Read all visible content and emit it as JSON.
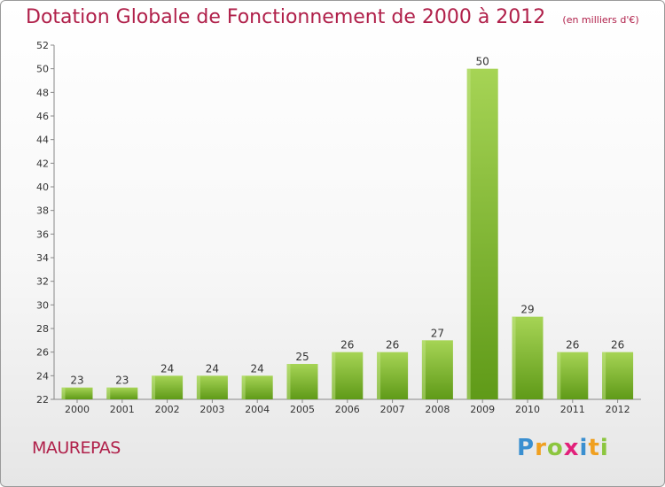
{
  "chart_data": {
    "type": "bar",
    "title": "Dotation Globale de Fonctionnement de 2000 à 2012",
    "subtitle": "(en milliers d'€)",
    "categories": [
      "2000",
      "2001",
      "2002",
      "2003",
      "2004",
      "2005",
      "2006",
      "2007",
      "2008",
      "2009",
      "2010",
      "2011",
      "2012"
    ],
    "values": [
      23,
      23,
      24,
      24,
      24,
      25,
      26,
      26,
      27,
      50,
      29,
      26,
      26
    ],
    "ylim": [
      22,
      52
    ],
    "yticks": [
      22,
      24,
      26,
      28,
      30,
      32,
      34,
      36,
      38,
      40,
      42,
      44,
      46,
      48,
      50,
      52
    ],
    "grid": false,
    "colors": {
      "bar_light": "#a6d455",
      "bar_dark": "#5f9a18",
      "title": "#b0204a"
    }
  },
  "footer": {
    "commune": "MAUREPAS",
    "logo": {
      "text": "Proxiti",
      "colors": [
        "#3a8fd0",
        "#f0a020",
        "#8cc63f",
        "#e2207a"
      ]
    }
  }
}
